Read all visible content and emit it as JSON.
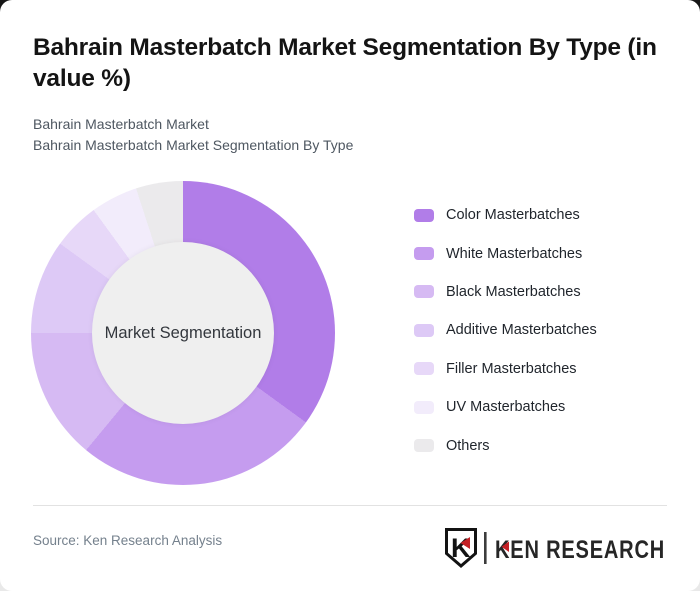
{
  "header": {
    "title": "Bahrain Masterbatch Market Segmentation By Type (in value %)",
    "subtitle_line1": "Bahrain Masterbatch Market",
    "subtitle_line2": "Bahrain Masterbatch Market Segmentation By Type"
  },
  "chart_data": {
    "type": "pie",
    "variant": "donut",
    "title": "Bahrain Masterbatch Market Segmentation By Type (in value %)",
    "unit": "value %",
    "center_label": "Market Segmentation",
    "categories": [
      "Color Masterbatches",
      "White Masterbatches",
      "Black Masterbatches",
      "Additive Masterbatches",
      "Filler Masterbatches",
      "UV Masterbatches",
      "Others"
    ],
    "values": [
      35,
      26,
      14,
      10,
      5,
      5,
      5
    ],
    "colors": [
      "#b17de8",
      "#c59cef",
      "#d6baf3",
      "#ddc9f6",
      "#e7d8f8",
      "#f2ecfb",
      "#ebeaec"
    ],
    "start_angle_deg": 0,
    "direction": "clockwise",
    "inner_radius_ratio": 0.6,
    "center_fill": "#efefef",
    "legend_position": "right",
    "data_labels": false
  },
  "footer": {
    "source": "Source: Ken Research Analysis",
    "logo": {
      "emblem_letter": "K",
      "brand": "KEN RESEARCH",
      "accent_color": "#c42126",
      "text_color": "#262626"
    }
  }
}
